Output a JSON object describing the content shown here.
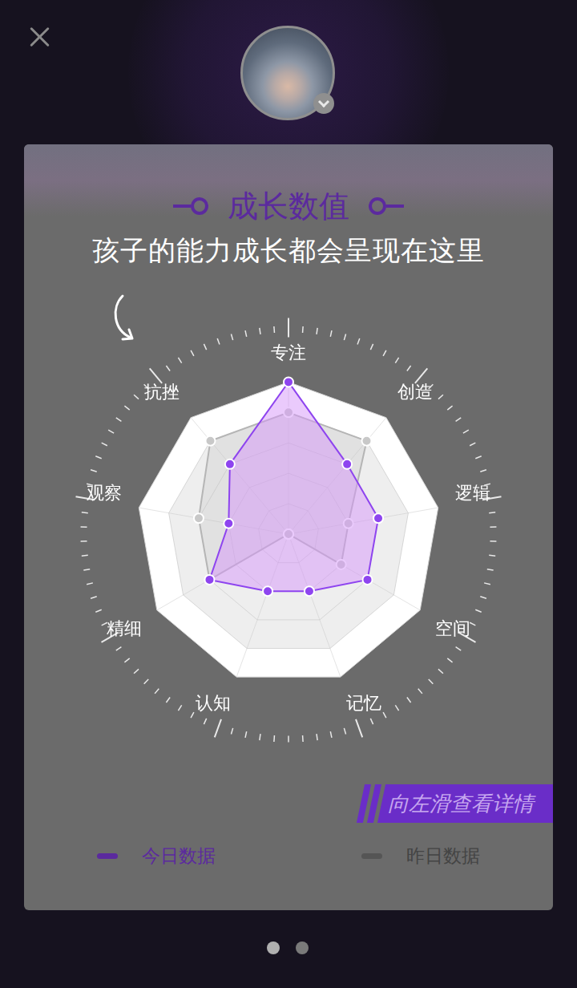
{
  "chart_data": {
    "type": "radar",
    "title": "成长数值",
    "subtitle": "孩子的能力成长都会呈现在这里",
    "annotations": [
      "向左滑查看详情"
    ],
    "categories": [
      "专注",
      "创造",
      "逻辑",
      "空间",
      "记忆",
      "认知",
      "精细",
      "观察",
      "抗挫"
    ],
    "series": [
      {
        "name": "今日数据",
        "color": "#8e44ef",
        "values": [
          100,
          60,
          60,
          60,
          40,
          40,
          60,
          40,
          60
        ]
      },
      {
        "name": "昨日数据",
        "color": "#b5b5b5",
        "values": [
          80,
          80,
          40,
          40,
          0,
          0,
          60,
          60,
          80
        ]
      }
    ],
    "ylim": [
      0,
      100
    ],
    "yticks": [
      0,
      20,
      40,
      60,
      80,
      100
    ],
    "grid": true,
    "tick_labels": false,
    "legend": "bottom"
  }
}
